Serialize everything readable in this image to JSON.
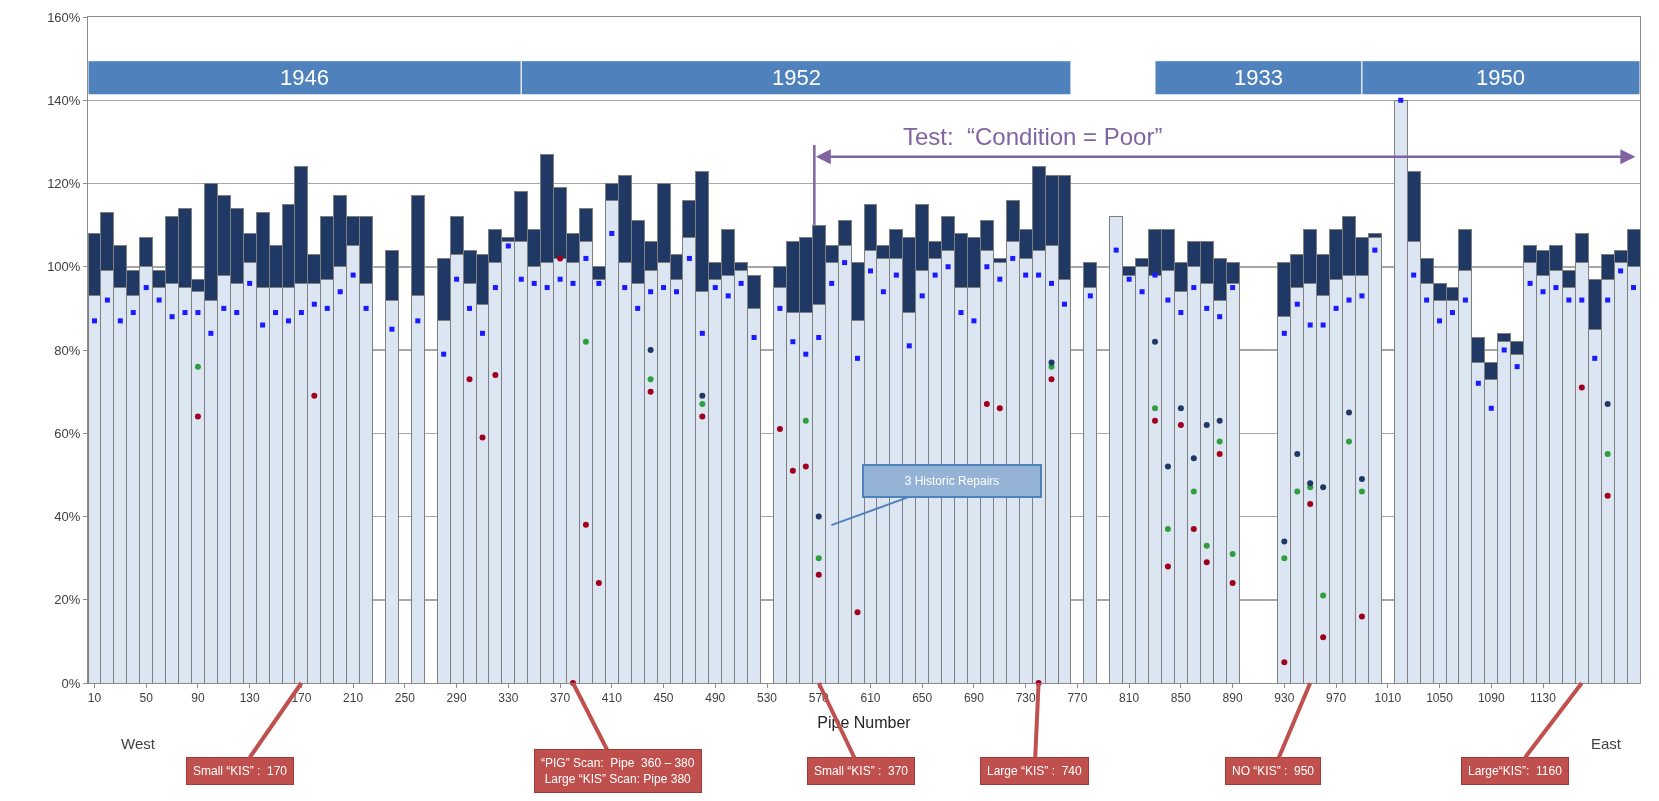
{
  "chart_data": {
    "type": "bar",
    "stacked": true,
    "grid": "y",
    "xlabel": "Pipe Number",
    "x": [
      10,
      20,
      30,
      40,
      50,
      60,
      70,
      80,
      90,
      100,
      110,
      120,
      130,
      140,
      150,
      160,
      170,
      180,
      190,
      200,
      210,
      220,
      230,
      240,
      250,
      260,
      270,
      280,
      290,
      300,
      310,
      320,
      330,
      340,
      350,
      360,
      370,
      380,
      390,
      400,
      410,
      420,
      430,
      440,
      450,
      460,
      470,
      480,
      490,
      500,
      510,
      520,
      530,
      540,
      550,
      560,
      570,
      580,
      590,
      600,
      610,
      620,
      630,
      640,
      650,
      660,
      670,
      680,
      690,
      700,
      710,
      720,
      730,
      740,
      750,
      760,
      770,
      780,
      790,
      800,
      810,
      820,
      830,
      840,
      850,
      860,
      870,
      880,
      890,
      900,
      910,
      920,
      930,
      940,
      950,
      960,
      970,
      980,
      990,
      1000,
      1010,
      1020,
      1030,
      1040,
      1050,
      1060,
      1070,
      1080,
      1090,
      1100,
      1110,
      1120,
      1130,
      1140,
      1150,
      1160,
      1170,
      1180,
      1190,
      1200
    ],
    "xlim": [
      5,
      1205
    ],
    "xticks": [
      10,
      50,
      90,
      130,
      170,
      210,
      250,
      290,
      330,
      370,
      410,
      450,
      490,
      530,
      570,
      610,
      650,
      690,
      730,
      770,
      810,
      850,
      890,
      930,
      970,
      1010,
      1050,
      1090,
      1130
    ],
    "ylim": [
      0,
      160
    ],
    "yticks": [
      {
        "value": 0,
        "label": "0%"
      },
      {
        "value": 20,
        "label": "20%"
      },
      {
        "value": 40,
        "label": "40%"
      },
      {
        "value": 60,
        "label": "60%"
      },
      {
        "value": 80,
        "label": "80%"
      },
      {
        "value": 100,
        "label": "100%"
      },
      {
        "value": 120,
        "label": "120%"
      },
      {
        "value": 140,
        "label": "140%"
      },
      {
        "value": 160,
        "label": "160%"
      }
    ],
    "series": [
      {
        "color": "#dce6f2",
        "values": [
          93,
          99,
          95,
          93,
          100,
          95,
          96,
          95,
          94,
          92,
          98,
          96,
          101,
          95,
          95,
          95,
          96,
          96,
          97,
          100,
          105,
          96,
          null,
          92,
          null,
          93,
          null,
          87,
          103,
          96,
          91,
          101,
          106,
          106,
          100,
          101,
          102,
          101,
          106,
          97,
          116,
          101,
          96,
          99,
          101,
          97,
          107,
          94,
          97,
          98,
          99,
          90,
          null,
          95,
          89,
          89,
          91,
          101,
          105,
          87,
          104,
          102,
          102,
          89,
          99,
          102,
          104,
          95,
          95,
          104,
          101,
          106,
          102,
          104,
          105,
          97,
          null,
          95,
          null,
          112,
          98,
          100,
          98,
          99,
          94,
          100,
          96,
          92,
          96,
          null,
          null,
          null,
          88,
          95,
          96,
          93,
          97,
          98,
          98,
          107,
          null,
          140,
          106,
          96,
          92,
          92,
          99,
          77,
          73,
          82,
          79,
          101,
          98,
          99,
          95,
          101,
          85,
          97,
          101,
          100
        ]
      },
      {
        "color": "#1f3864",
        "values": [
          15,
          14,
          10,
          6,
          7,
          4,
          16,
          19,
          3,
          28,
          19,
          18,
          7,
          18,
          10,
          20,
          28,
          7,
          15,
          17,
          7,
          16,
          null,
          12,
          null,
          24,
          null,
          15,
          9,
          8,
          12,
          8,
          1,
          12,
          9,
          26,
          17,
          7,
          8,
          3,
          4,
          21,
          15,
          7,
          19,
          6,
          9,
          29,
          4,
          11,
          2,
          8,
          null,
          5,
          17,
          18,
          19,
          4,
          6,
          14,
          11,
          3,
          7,
          18,
          16,
          4,
          8,
          13,
          12,
          7,
          1,
          10,
          7,
          20,
          17,
          25,
          null,
          6,
          null,
          null,
          2,
          2,
          11,
          10,
          7,
          6,
          10,
          10,
          5,
          null,
          null,
          null,
          13,
          8,
          13,
          10,
          12,
          14,
          9,
          1,
          null,
          null,
          17,
          6,
          4,
          3,
          10,
          6,
          4,
          2,
          3,
          4,
          6,
          6,
          4,
          7,
          12,
          6,
          3,
          9
        ]
      },
      {
        "type": "scatter",
        "color": "#1a1aff",
        "marker": "square",
        "values": [
          87,
          92,
          87,
          89,
          95,
          92,
          88,
          89,
          89,
          84,
          90,
          89,
          96,
          86,
          89,
          87,
          89,
          91,
          90,
          94,
          98,
          90,
          null,
          85,
          null,
          87,
          null,
          79,
          97,
          90,
          84,
          95,
          105,
          97,
          96,
          95,
          97,
          96,
          102,
          96,
          108,
          95,
          90,
          94,
          95,
          94,
          102,
          84,
          95,
          93,
          96,
          83,
          null,
          90,
          82,
          79,
          83,
          96,
          101,
          78,
          99,
          94,
          98,
          81,
          93,
          98,
          100,
          89,
          87,
          100,
          97,
          102,
          98,
          98,
          96,
          91,
          null,
          93,
          null,
          104,
          97,
          94,
          98,
          92,
          89,
          95,
          90,
          88,
          95,
          null,
          null,
          null,
          84,
          91,
          86,
          86,
          90,
          92,
          93,
          104,
          null,
          140,
          98,
          92,
          87,
          89,
          92,
          72,
          66,
          80,
          76,
          96,
          94,
          95,
          92,
          92,
          78,
          92,
          99,
          95
        ]
      },
      {
        "type": "scatter",
        "color": "#a0001e",
        "marker": "circle",
        "x": [
          90,
          180,
          300,
          310,
          320,
          370,
          380,
          390,
          400,
          440,
          480,
          540,
          550,
          560,
          570,
          600,
          700,
          710,
          740,
          750,
          830,
          840,
          850,
          860,
          870,
          880,
          890,
          930,
          950,
          960,
          990,
          1160,
          1180
        ],
        "values": [
          64,
          69,
          73,
          59,
          74,
          102,
          0,
          38,
          24,
          70,
          64,
          61,
          51,
          52,
          26,
          17,
          67,
          66,
          0,
          73,
          63,
          28,
          62,
          37,
          29,
          55,
          24,
          5,
          43,
          11,
          16,
          71,
          45
        ]
      },
      {
        "type": "scatter",
        "color": "#2e9e3e",
        "marker": "circle",
        "x": [
          90,
          390,
          440,
          480,
          560,
          570,
          750,
          830,
          840,
          860,
          870,
          880,
          890,
          930,
          940,
          950,
          960,
          980,
          990,
          1180
        ],
        "values": [
          76,
          82,
          73,
          67,
          63,
          30,
          76,
          66,
          37,
          46,
          33,
          58,
          31,
          30,
          46,
          47,
          21,
          58,
          46,
          55
        ]
      },
      {
        "type": "scatter",
        "color": "#1f3864",
        "marker": "circle",
        "x": [
          440,
          480,
          570,
          750,
          830,
          840,
          850,
          860,
          870,
          880,
          930,
          940,
          950,
          960,
          980,
          990,
          1180
        ],
        "values": [
          80,
          69,
          40,
          77,
          82,
          52,
          66,
          54,
          62,
          63,
          34,
          55,
          48,
          47,
          65,
          49,
          67
        ]
      }
    ],
    "bands": [
      {
        "axis": "x",
        "from": 5,
        "to": 340,
        "label": "1946",
        "color": "#4f81bd"
      },
      {
        "axis": "x",
        "from": 340,
        "to": 765,
        "label": "1952",
        "color": "#4f81bd"
      },
      {
        "axis": "x",
        "from": 830,
        "to": 990,
        "label": "1933",
        "color": "#4f81bd"
      },
      {
        "axis": "x",
        "from": 990,
        "to": 1205,
        "label": "1950",
        "color": "#4f81bd"
      }
    ],
    "annotations": [
      "West",
      "East",
      "Test:  “Condition = Poor”",
      "3 Historic Repairs",
      {
        "text": "Small “KIS” :  170",
        "x": 170,
        "y": 0
      },
      {
        "text": "“PIG” Scan:  Pipe  360 – 380\nLarge “KIS” Scan: Pipe 380",
        "x": 380,
        "y": 0
      },
      {
        "text": "Small “KIS” :  370",
        "x": 570,
        "y": 0
      },
      {
        "text": "Large “KIS” :  740",
        "x": 740,
        "y": 0
      },
      {
        "text": "NO “KIS” :  950",
        "x": 950,
        "y": 0
      },
      {
        "text": "Large“KIS”:  1160",
        "x": 1160,
        "y": 0
      }
    ]
  }
}
